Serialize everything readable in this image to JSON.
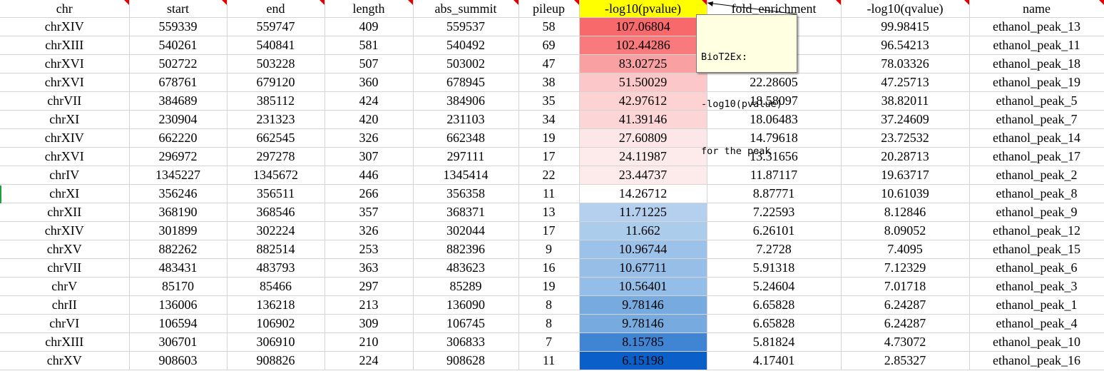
{
  "columns": [
    {
      "key": "chr",
      "label": "chr",
      "width": 181
    },
    {
      "key": "start",
      "label": "start",
      "width": 137
    },
    {
      "key": "end",
      "label": "end",
      "width": 137
    },
    {
      "key": "length",
      "label": "length",
      "width": 124
    },
    {
      "key": "abs_summit",
      "label": "abs_summit",
      "width": 148
    },
    {
      "key": "pileup",
      "label": "pileup",
      "width": 85
    },
    {
      "key": "pvalue",
      "label": "-log10(pvalue)",
      "width": 179
    },
    {
      "key": "fold",
      "label": "fold_enrichment",
      "width": 188
    },
    {
      "key": "qvalue",
      "label": "-log10(qvalue)",
      "width": 180
    },
    {
      "key": "name",
      "label": "name",
      "width": 189
    }
  ],
  "header_highlight_color": "#ffff00",
  "rows": [
    {
      "chr": "chrXIV",
      "start": "559339",
      "end": "559747",
      "length": "409",
      "abs_summit": "559537",
      "pileup": "58",
      "pvalue": "107.06804",
      "fold": "",
      "qvalue": "99.98415",
      "name": "ethanol_peak_13",
      "pvalue_color": "#f8696b"
    },
    {
      "chr": "chrXIII",
      "start": "540261",
      "end": "540841",
      "length": "581",
      "abs_summit": "540492",
      "pileup": "69",
      "pvalue": "102.44286",
      "fold": "",
      "qvalue": "96.54213",
      "name": "ethanol_peak_11",
      "pvalue_color": "#f87a7c"
    },
    {
      "chr": "chrXVI",
      "start": "502722",
      "end": "503228",
      "length": "507",
      "abs_summit": "503002",
      "pileup": "47",
      "pvalue": "83.02725",
      "fold": "",
      "qvalue": "78.03326",
      "name": "ethanol_peak_18",
      "pvalue_color": "#f9a0a2"
    },
    {
      "chr": "chrXVI",
      "start": "678761",
      "end": "679120",
      "length": "360",
      "abs_summit": "678945",
      "pileup": "38",
      "pvalue": "51.50029",
      "fold": "22.28605",
      "qvalue": "47.25713",
      "name": "ethanol_peak_19",
      "pvalue_color": "#fbc7c8"
    },
    {
      "chr": "chrVII",
      "start": "384689",
      "end": "385112",
      "length": "424",
      "abs_summit": "384906",
      "pileup": "35",
      "pvalue": "42.97612",
      "fold": "18.58097",
      "qvalue": "38.82011",
      "name": "ethanol_peak_5",
      "pvalue_color": "#fcd2d3"
    },
    {
      "chr": "chrXI",
      "start": "230904",
      "end": "231323",
      "length": "420",
      "abs_summit": "231103",
      "pileup": "34",
      "pvalue": "41.39146",
      "fold": "18.06483",
      "qvalue": "37.24609",
      "name": "ethanol_peak_7",
      "pvalue_color": "#fcd5d6"
    },
    {
      "chr": "chrXIV",
      "start": "662220",
      "end": "662545",
      "length": "326",
      "abs_summit": "662348",
      "pileup": "19",
      "pvalue": "27.60809",
      "fold": "14.79618",
      "qvalue": "23.72532",
      "name": "ethanol_peak_14",
      "pvalue_color": "#fde6e7"
    },
    {
      "chr": "chrXVI",
      "start": "296972",
      "end": "297278",
      "length": "307",
      "abs_summit": "297111",
      "pileup": "17",
      "pvalue": "24.11987",
      "fold": "13.31656",
      "qvalue": "20.28713",
      "name": "ethanol_peak_17",
      "pvalue_color": "#fdeaeb"
    },
    {
      "chr": "chrIV",
      "start": "1345227",
      "end": "1345672",
      "length": "446",
      "abs_summit": "1345414",
      "pileup": "22",
      "pvalue": "23.44737",
      "fold": "11.87117",
      "qvalue": "19.63717",
      "name": "ethanol_peak_2",
      "pvalue_color": "#fdebec"
    },
    {
      "chr": "chrXI",
      "start": "356246",
      "end": "356511",
      "length": "266",
      "abs_summit": "356358",
      "pileup": "11",
      "pvalue": "14.26712",
      "fold": "8.87771",
      "qvalue": "10.61039",
      "name": "ethanol_peak_8",
      "pvalue_color": "#ffffff"
    },
    {
      "chr": "chrXII",
      "start": "368190",
      "end": "368546",
      "length": "357",
      "abs_summit": "368371",
      "pileup": "13",
      "pvalue": "11.71225",
      "fold": "7.22593",
      "qvalue": "8.12846",
      "name": "ethanol_peak_9",
      "pvalue_color": "#b4d0ee"
    },
    {
      "chr": "chrXIV",
      "start": "301899",
      "end": "302224",
      "length": "326",
      "abs_summit": "302044",
      "pileup": "17",
      "pvalue": "11.662",
      "fold": "6.26101",
      "qvalue": "8.09052",
      "name": "ethanol_peak_12",
      "pvalue_color": "#acccec"
    },
    {
      "chr": "chrXV",
      "start": "882262",
      "end": "882514",
      "length": "253",
      "abs_summit": "882396",
      "pileup": "9",
      "pvalue": "10.96744",
      "fold": "7.2728",
      "qvalue": "7.4095",
      "name": "ethanol_peak_15",
      "pvalue_color": "#9dc2e9"
    },
    {
      "chr": "chrVII",
      "start": "483431",
      "end": "483793",
      "length": "363",
      "abs_summit": "483623",
      "pileup": "16",
      "pvalue": "10.67711",
      "fold": "5.91318",
      "qvalue": "7.12329",
      "name": "ethanol_peak_6",
      "pvalue_color": "#96bee7"
    },
    {
      "chr": "chrV",
      "start": "85170",
      "end": "85466",
      "length": "297",
      "abs_summit": "85289",
      "pileup": "19",
      "pvalue": "10.56401",
      "fold": "5.24604",
      "qvalue": "7.01718",
      "name": "ethanol_peak_3",
      "pvalue_color": "#94bde7"
    },
    {
      "chr": "chrII",
      "start": "136006",
      "end": "136218",
      "length": "213",
      "abs_summit": "136090",
      "pileup": "8",
      "pvalue": "9.78146",
      "fold": "6.65828",
      "qvalue": "6.24287",
      "name": "ethanol_peak_1",
      "pvalue_color": "#77abe0"
    },
    {
      "chr": "chrVI",
      "start": "106594",
      "end": "106902",
      "length": "309",
      "abs_summit": "106745",
      "pileup": "8",
      "pvalue": "9.78146",
      "fold": "6.65828",
      "qvalue": "6.24287",
      "name": "ethanol_peak_4",
      "pvalue_color": "#77abe0"
    },
    {
      "chr": "chrXIII",
      "start": "306701",
      "end": "306910",
      "length": "210",
      "abs_summit": "306833",
      "pileup": "7",
      "pvalue": "8.15785",
      "fold": "5.81824",
      "qvalue": "4.73072",
      "name": "ethanol_peak_10",
      "pvalue_color": "#3f85d4"
    },
    {
      "chr": "chrXV",
      "start": "908603",
      "end": "908826",
      "length": "224",
      "abs_summit": "908628",
      "pileup": "11",
      "pvalue": "6.15198",
      "fold": "4.17401",
      "qvalue": "2.85327",
      "name": "ethanol_peak_16",
      "pvalue_color": "#0a5fc9"
    }
  ],
  "comment": {
    "author": "BioT2Ex:",
    "lines": [
      "-log10(pvalue)",
      "for the peak"
    ]
  }
}
